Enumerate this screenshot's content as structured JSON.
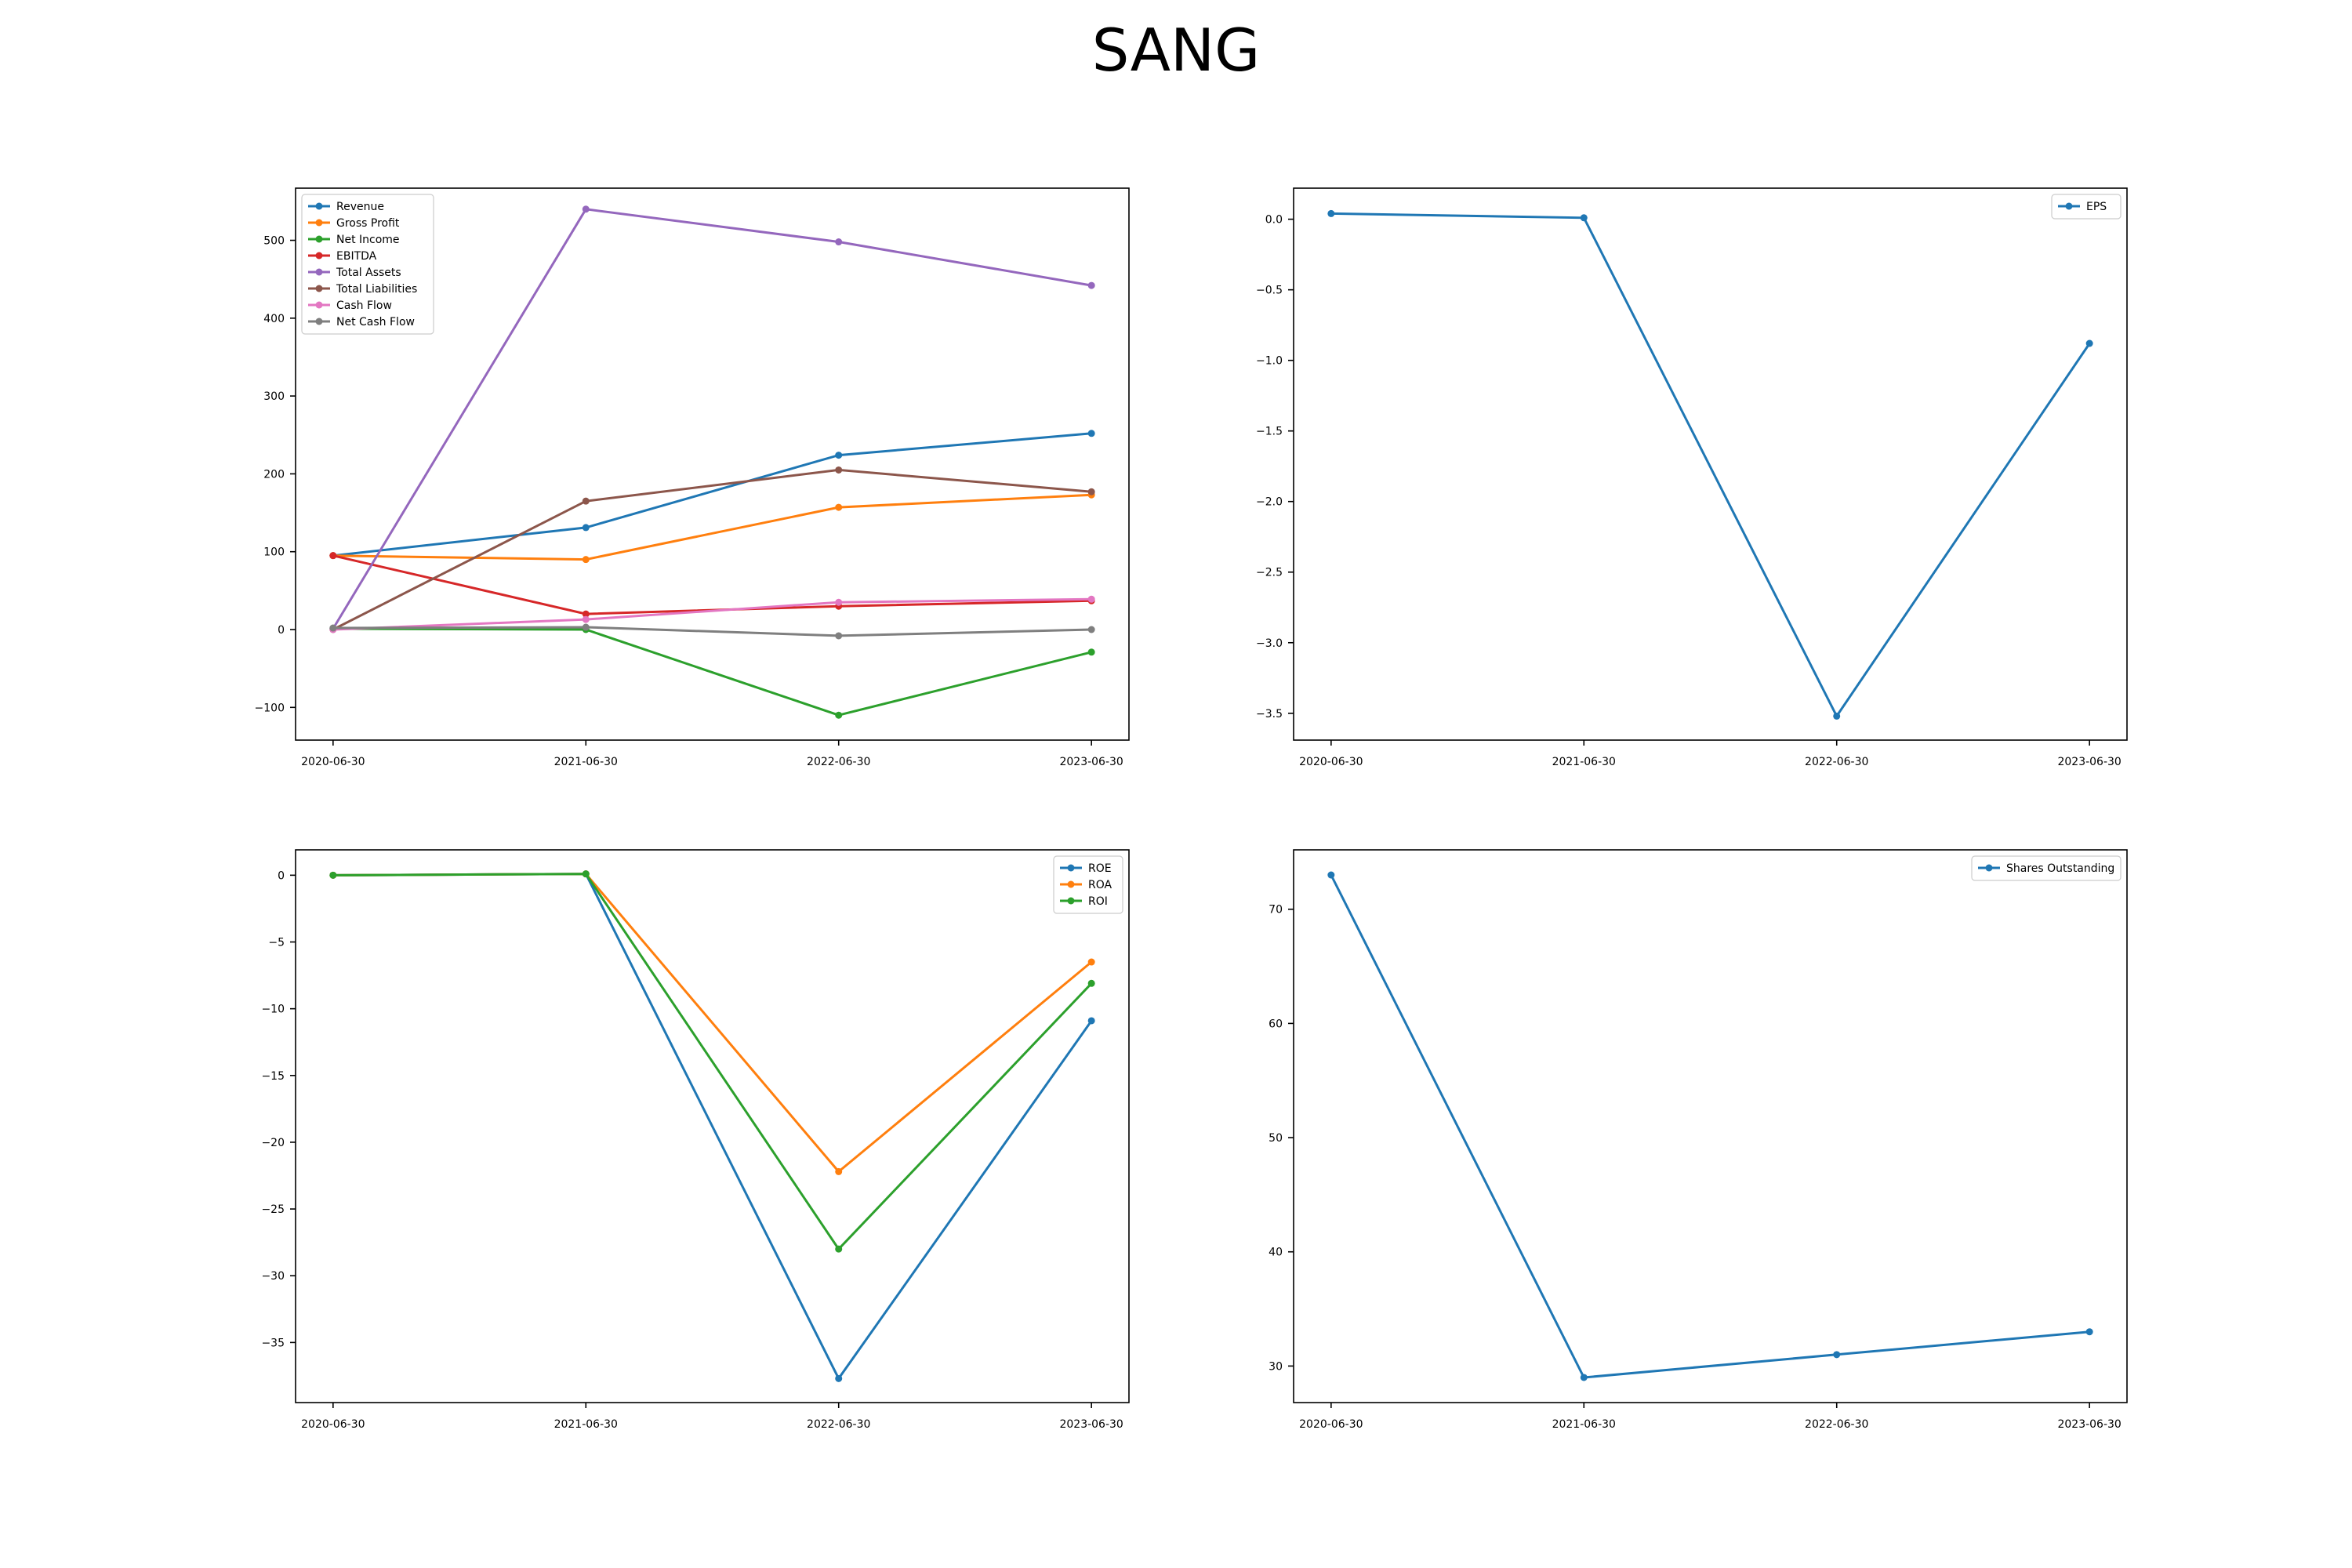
{
  "figure": {
    "title": "SANG"
  },
  "chart_data": [
    {
      "type": "line",
      "categories": [
        "2020-06-30",
        "2021-06-30",
        "2022-06-30",
        "2023-06-30"
      ],
      "ylim": [
        -142,
        567
      ],
      "yticks": [
        -100,
        0,
        100,
        200,
        300,
        400,
        500
      ],
      "ytick_labels": [
        "−100",
        "0",
        "100",
        "200",
        "300",
        "400",
        "500"
      ],
      "grid": false,
      "legend_position": "upper left",
      "series": [
        {
          "name": "Revenue",
          "color": "#1f77b4",
          "values": [
            95,
            131,
            224,
            252
          ]
        },
        {
          "name": "Gross Profit",
          "color": "#ff7f0e",
          "values": [
            95,
            90,
            157,
            173
          ]
        },
        {
          "name": "Net Income",
          "color": "#2ca02c",
          "values": [
            1,
            0,
            -110,
            -29
          ]
        },
        {
          "name": "EBITDA",
          "color": "#d62728",
          "values": [
            95,
            20,
            30,
            37
          ]
        },
        {
          "name": "Total Assets",
          "color": "#9467bd",
          "values": [
            1,
            540,
            498,
            442
          ]
        },
        {
          "name": "Total Liabilities",
          "color": "#8c564b",
          "values": [
            0,
            165,
            205,
            177
          ]
        },
        {
          "name": "Cash Flow",
          "color": "#e377c2",
          "values": [
            0,
            13,
            35,
            39
          ]
        },
        {
          "name": "Net Cash Flow",
          "color": "#7f7f7f",
          "values": [
            2,
            3,
            -8,
            0
          ]
        }
      ]
    },
    {
      "type": "line",
      "categories": [
        "2020-06-30",
        "2021-06-30",
        "2022-06-30",
        "2023-06-30"
      ],
      "ylim": [
        -3.69,
        0.22
      ],
      "yticks": [
        0.0,
        -0.5,
        -1.0,
        -1.5,
        -2.0,
        -2.5,
        -3.0,
        -3.5
      ],
      "ytick_labels": [
        "0.0",
        "−0.5",
        "−1.0",
        "−1.5",
        "−2.0",
        "−2.5",
        "−3.0",
        "−3.5"
      ],
      "grid": false,
      "legend_position": "upper right",
      "series": [
        {
          "name": "EPS",
          "color": "#1f77b4",
          "values": [
            0.04,
            0.01,
            -3.52,
            -0.88
          ]
        }
      ]
    },
    {
      "type": "line",
      "categories": [
        "2020-06-30",
        "2021-06-30",
        "2022-06-30",
        "2023-06-30"
      ],
      "ylim": [
        -39.5,
        1.9
      ],
      "yticks": [
        0,
        -5,
        -10,
        -15,
        -20,
        -25,
        -30,
        -35
      ],
      "ytick_labels": [
        "0",
        "−5",
        "−10",
        "−15",
        "−20",
        "−25",
        "−30",
        "−35"
      ],
      "grid": false,
      "legend_position": "upper right",
      "series": [
        {
          "name": "ROE",
          "color": "#1f77b4",
          "values": [
            0.0,
            0.1,
            -37.7,
            -10.9
          ]
        },
        {
          "name": "ROA",
          "color": "#ff7f0e",
          "values": [
            0.0,
            0.1,
            -22.2,
            -6.5
          ]
        },
        {
          "name": "ROI",
          "color": "#2ca02c",
          "values": [
            0.0,
            0.1,
            -28.0,
            -8.1
          ]
        }
      ]
    },
    {
      "type": "line",
      "categories": [
        "2020-06-30",
        "2021-06-30",
        "2022-06-30",
        "2023-06-30"
      ],
      "ylim": [
        26.8,
        75.2
      ],
      "yticks": [
        30,
        40,
        50,
        60,
        70
      ],
      "ytick_labels": [
        "30",
        "40",
        "50",
        "60",
        "70"
      ],
      "grid": false,
      "legend_position": "upper right",
      "series": [
        {
          "name": "Shares Outstanding",
          "color": "#1f77b4",
          "values": [
            73,
            29,
            31,
            33
          ]
        }
      ]
    }
  ]
}
